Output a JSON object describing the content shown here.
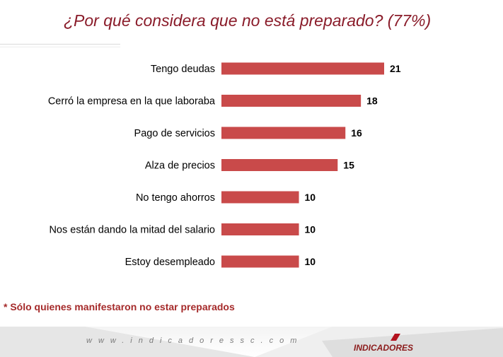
{
  "chart_data": {
    "type": "bar",
    "orientation": "horizontal",
    "title": "¿Por qué considera que no está preparado? (77%)",
    "categories": [
      "Tengo deudas",
      "Cerró la empresa en la que laboraba",
      "Pago de servicios",
      "Alza de precios",
      "No tengo ahorros",
      "Nos están dando la mitad del salario",
      "Estoy desempleado"
    ],
    "values": [
      21,
      18,
      16,
      15,
      10,
      10,
      10
    ],
    "value_labels": [
      "21",
      "18",
      "16",
      "15",
      "10",
      "10",
      "10"
    ],
    "xlim": [
      0,
      21
    ],
    "bar_color": "#c94a4a",
    "grid": false,
    "legend": "none"
  },
  "footnote": "* Sólo quienes manifestaron no estar preparados",
  "footer": {
    "url": "www.indicadoressc.com",
    "logo_text": "INDICADORES"
  },
  "colors": {
    "title": "#8a1c2a",
    "footnote": "#a52a2a",
    "accent": "#8b1a1a"
  }
}
